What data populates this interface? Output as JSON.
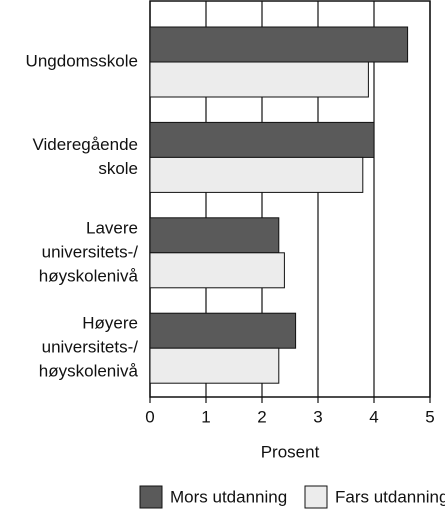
{
  "chart_data": {
    "type": "hbar",
    "categories": [
      [
        "Ungdomsskole"
      ],
      [
        "Videregående",
        "skole"
      ],
      [
        "Lavere",
        "universitets-/",
        "høyskolenivå"
      ],
      [
        "Høyere",
        "universitets-/",
        "høyskolenivå"
      ]
    ],
    "series": [
      {
        "name": "Mors utdanning",
        "color": "#5a5a5a",
        "values": [
          4.6,
          4.0,
          2.3,
          2.6
        ]
      },
      {
        "name": "Fars utdanning",
        "color": "#ececec",
        "values": [
          3.9,
          3.8,
          2.4,
          2.3
        ]
      }
    ],
    "xlabel": "Prosent",
    "xlim": [
      0,
      5
    ],
    "xticks": [
      0,
      1,
      2,
      3,
      4,
      5
    ],
    "grid": true
  }
}
